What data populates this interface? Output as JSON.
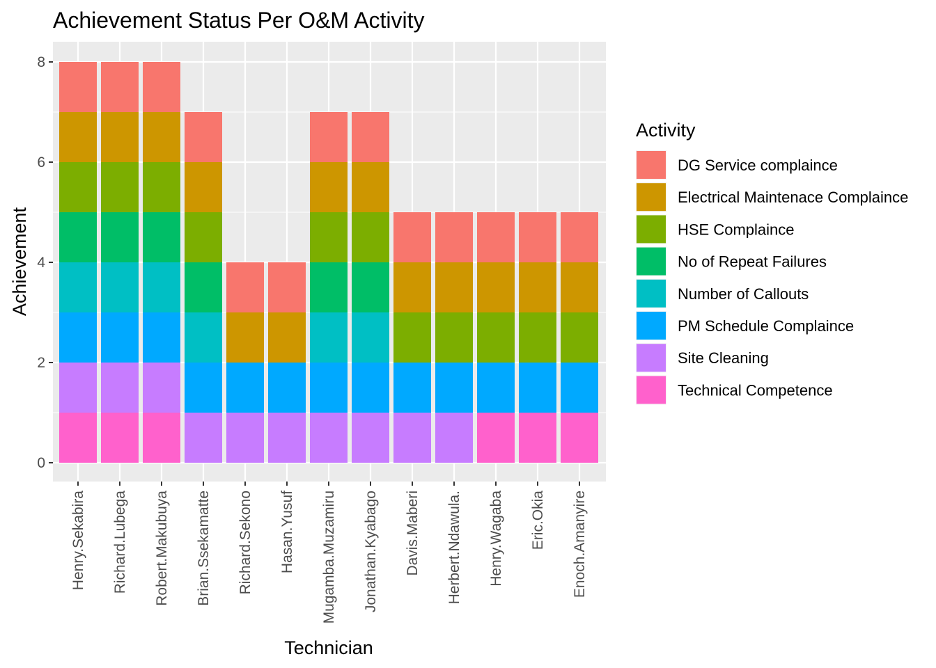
{
  "chart_data": {
    "type": "bar",
    "stacked": true,
    "title": "Achievement Status Per O&M Activity",
    "xlabel": "Technician",
    "ylabel": "Achievement",
    "ylim": [
      0,
      8
    ],
    "yticks": [
      0,
      2,
      4,
      6,
      8
    ],
    "grid": true,
    "legend_title": "Activity",
    "legend_position": "right",
    "categories": [
      "Henry.Sekabira",
      "Richard.Lubega",
      "Robert.Makubuya",
      "Brian.Ssekamatte",
      "Richard.Sekono",
      "Hasan.Yusuf",
      "Mugamba.Muzamiru",
      "Jonathan.Kyabago",
      "Davis.Maberi",
      "Herbert.Ndawula.",
      "Henry.Wagaba",
      "Eric.Okia",
      "Enoch.Amanyire"
    ],
    "series": [
      {
        "name": "DG Service complaince",
        "color": "#F8766D",
        "values": [
          1,
          1,
          1,
          1,
          1,
          1,
          1,
          1,
          1,
          1,
          1,
          1,
          1
        ]
      },
      {
        "name": "Electrical Maintenace Complaince",
        "color": "#CD9600",
        "values": [
          1,
          1,
          1,
          1,
          1,
          1,
          1,
          1,
          1,
          1,
          1,
          1,
          1
        ]
      },
      {
        "name": "HSE Complaince",
        "color": "#7CAE00",
        "values": [
          1,
          1,
          1,
          1,
          0,
          0,
          1,
          1,
          1,
          1,
          1,
          1,
          1
        ]
      },
      {
        "name": "No of Repeat Failures",
        "color": "#00BE67",
        "values": [
          1,
          1,
          1,
          1,
          0,
          0,
          1,
          1,
          0,
          0,
          0,
          0,
          0
        ]
      },
      {
        "name": "Number of Callouts",
        "color": "#00BFC4",
        "values": [
          1,
          1,
          1,
          1,
          0,
          0,
          1,
          1,
          0,
          0,
          0,
          0,
          0
        ]
      },
      {
        "name": "PM Schedule Complaince",
        "color": "#00A9FF",
        "values": [
          1,
          1,
          1,
          1,
          1,
          1,
          1,
          1,
          1,
          1,
          1,
          1,
          1
        ]
      },
      {
        "name": "Site Cleaning",
        "color": "#C77CFF",
        "values": [
          1,
          1,
          1,
          1,
          1,
          1,
          1,
          1,
          1,
          1,
          0,
          0,
          0
        ]
      },
      {
        "name": "Technical Competence",
        "color": "#FF61CC",
        "values": [
          1,
          1,
          1,
          0,
          0,
          0,
          0,
          0,
          0,
          0,
          1,
          1,
          1
        ]
      }
    ]
  }
}
